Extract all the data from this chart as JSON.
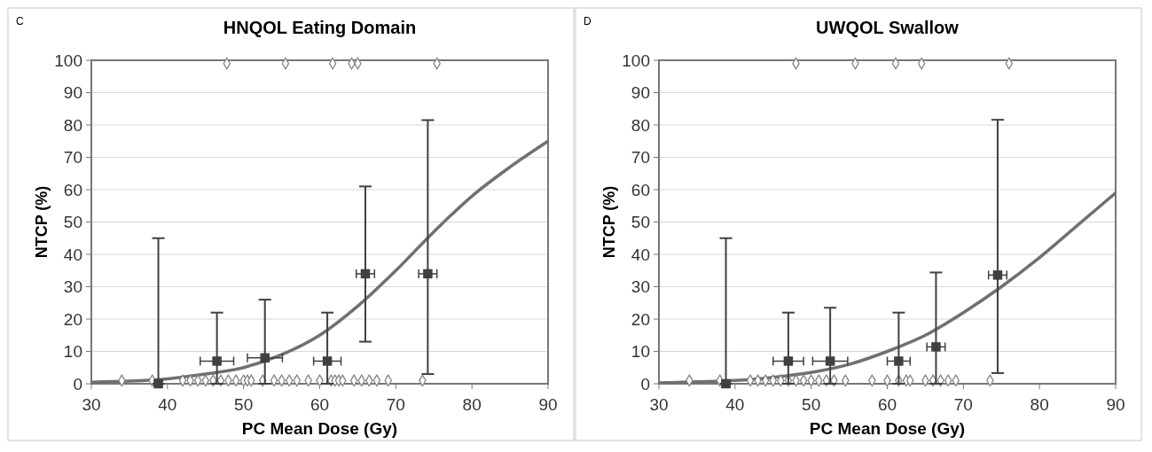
{
  "chart_data": [
    {
      "type": "scatter",
      "title": "HNQOL Eating Domain",
      "xlabel": "PC Mean Dose (Gy)",
      "ylabel": "NTCP (%)",
      "annotations": [
        "C"
      ],
      "xlim": [
        30,
        90
      ],
      "xticks": [
        30,
        40,
        50,
        60,
        70,
        80,
        90
      ],
      "ylim": [
        0,
        100
      ],
      "yticks": [
        0,
        10,
        20,
        30,
        40,
        50,
        60,
        70,
        80,
        90,
        100
      ],
      "grid": "y",
      "series": [
        {
          "type": "scatter",
          "marker": "diamond",
          "color": "#808080",
          "x": [
            47.8,
            55.5,
            61.7,
            64.2,
            65.0,
            75.4
          ],
          "values": [
            99,
            99,
            99,
            99,
            99,
            99
          ]
        },
        {
          "type": "scatter",
          "marker": "diamond",
          "color": "#808080",
          "x": [
            34,
            38,
            42,
            43,
            44,
            45,
            46,
            47,
            48,
            49,
            50,
            50.5,
            51,
            52.5,
            54,
            55,
            56,
            57,
            58.5,
            60,
            61.5,
            62,
            62.5,
            63,
            64.5,
            65.5,
            66.5,
            67.5,
            69,
            73.5
          ],
          "values": [
            1,
            1,
            1,
            1,
            1,
            1,
            1,
            1,
            1,
            1,
            1,
            1,
            1,
            1,
            1,
            1,
            1,
            1,
            1,
            1,
            1,
            1,
            1,
            1,
            1,
            1,
            1,
            1,
            1,
            1
          ]
        },
        {
          "type": "line",
          "marker": "none",
          "color": "#707070",
          "x": [
            30,
            35,
            40,
            45,
            50,
            55,
            60,
            65,
            70,
            75,
            80,
            85,
            90
          ],
          "values": [
            0.5,
            0.8,
            1.5,
            3,
            5,
            9,
            15,
            24,
            35,
            47,
            58,
            67,
            75
          ]
        },
        {
          "type": "scatter",
          "marker": "square",
          "color": "#404040",
          "x": [
            38.8,
            46.5,
            52.8,
            61,
            66,
            74.2
          ],
          "values": [
            0,
            7,
            8,
            7,
            34,
            34
          ],
          "errors": [
            [
              0,
              45
            ],
            [
              0,
              22
            ],
            [
              0,
              26
            ],
            [
              0,
              22
            ],
            [
              13,
              61
            ],
            [
              3,
              81.5
            ]
          ],
          "xerrors": [
            0.5,
            2.2,
            2.3,
            1.8,
            1.2,
            1.2
          ]
        }
      ]
    },
    {
      "type": "scatter",
      "title": "UWQOL Swallow",
      "xlabel": "PC Mean Dose (Gy)",
      "ylabel": "NTCP (%)",
      "annotations": [
        "D"
      ],
      "xlim": [
        30,
        90
      ],
      "xticks": [
        30,
        40,
        50,
        60,
        70,
        80,
        90
      ],
      "ylim": [
        0,
        100
      ],
      "yticks": [
        0,
        10,
        20,
        30,
        40,
        50,
        60,
        70,
        80,
        90,
        100
      ],
      "grid": "y",
      "series": [
        {
          "type": "scatter",
          "marker": "diamond",
          "color": "#808080",
          "x": [
            48,
            55.8,
            61.1,
            64.5,
            76
          ],
          "values": [
            99,
            99,
            99,
            99,
            99
          ]
        },
        {
          "type": "scatter",
          "marker": "diamond",
          "color": "#808080",
          "x": [
            34,
            38,
            42,
            43,
            44,
            45,
            46,
            47,
            48,
            49,
            50,
            51,
            52,
            53,
            54.5,
            58,
            60,
            61.5,
            62.5,
            63,
            65,
            66,
            67,
            68,
            69,
            73.5
          ],
          "values": [
            1,
            1,
            1,
            1,
            1,
            1,
            1,
            1,
            1,
            1,
            1,
            1,
            1,
            1,
            1,
            1,
            1,
            1,
            1,
            1,
            1,
            1,
            1,
            1,
            1,
            1
          ]
        },
        {
          "type": "line",
          "marker": "none",
          "color": "#707070",
          "x": [
            30,
            35,
            40,
            45,
            50,
            55,
            60,
            65,
            70,
            75,
            80,
            85,
            90
          ],
          "values": [
            0.3,
            0.6,
            1,
            2,
            3.5,
            6,
            10,
            15,
            22,
            30,
            39,
            49,
            59
          ]
        },
        {
          "type": "scatter",
          "marker": "square",
          "color": "#404040",
          "x": [
            38.8,
            47,
            52.5,
            61.5,
            66.4,
            74.5
          ],
          "values": [
            0,
            7,
            7,
            7,
            11.4,
            33.6
          ],
          "errors": [
            [
              0,
              45
            ],
            [
              0,
              22
            ],
            [
              0,
              23.5
            ],
            [
              0,
              22
            ],
            [
              0,
              34.4
            ],
            [
              3.3,
              81.6
            ]
          ],
          "xerrors": [
            0.5,
            2,
            2.3,
            1.5,
            1.2,
            1.2
          ]
        }
      ]
    }
  ]
}
